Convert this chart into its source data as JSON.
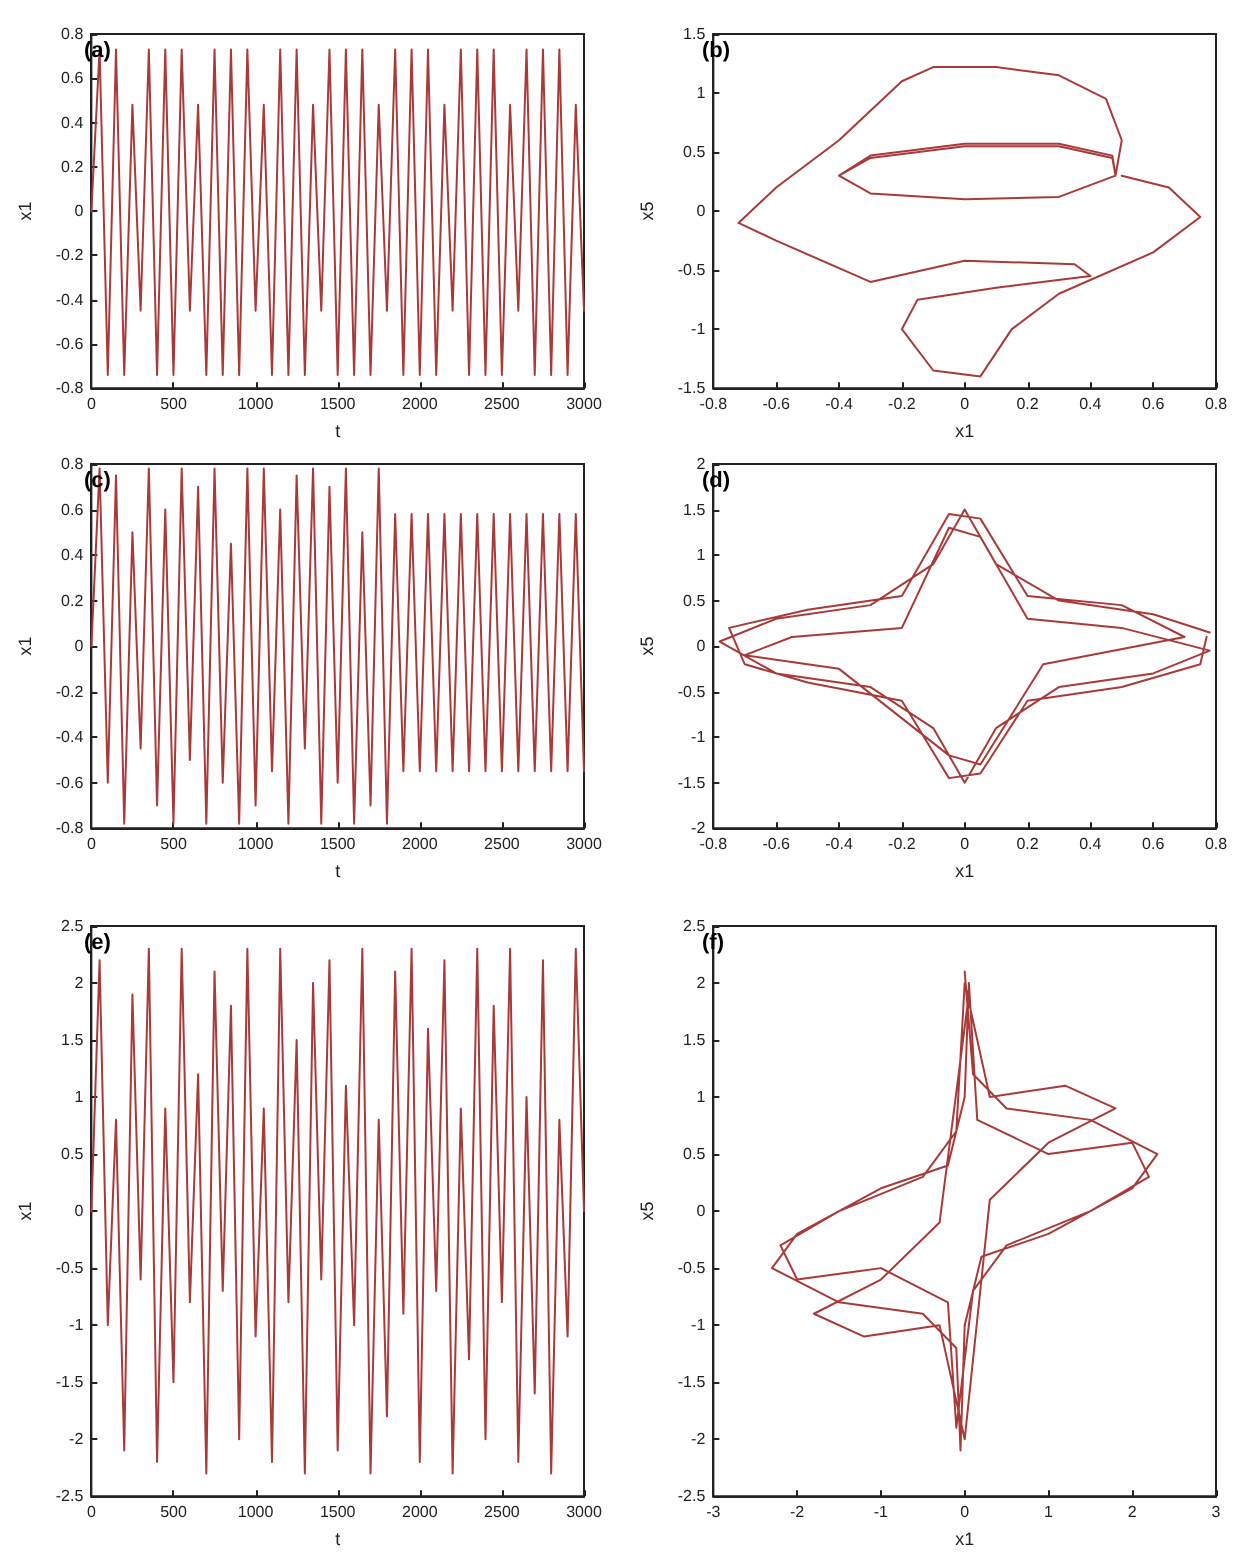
{
  "chart_data": [
    {
      "type": "line",
      "title": "(a)",
      "xlabel": "t",
      "ylabel": "x1",
      "xlim": [
        0,
        3000
      ],
      "xticks": [
        0,
        500,
        1000,
        1500,
        2000,
        2500,
        3000
      ],
      "ylim": [
        -0.8,
        0.8
      ],
      "yticks": [
        -0.8,
        -0.6,
        -0.4,
        -0.2,
        0,
        0.2,
        0.4,
        0.6,
        0.8
      ],
      "series": [
        {
          "color": "#a83a3a",
          "x": [
            0,
            50,
            100,
            150,
            200,
            250,
            300,
            350,
            400,
            450,
            500,
            550,
            600,
            650,
            700,
            750,
            800,
            850,
            900,
            950,
            1000,
            1050,
            1100,
            1150,
            1200,
            1250,
            1300,
            1350,
            1400,
            1450,
            1500,
            1550,
            1600,
            1650,
            1700,
            1750,
            1800,
            1850,
            1900,
            1950,
            2000,
            2050,
            2100,
            2150,
            2200,
            2250,
            2300,
            2350,
            2400,
            2450,
            2500,
            2550,
            2600,
            2650,
            2700,
            2750,
            2800,
            2850,
            2900,
            2950,
            3000
          ],
          "values": [
            0,
            0.73,
            -0.74,
            0.73,
            -0.74,
            0.48,
            -0.45,
            0.73,
            -0.74,
            0.73,
            -0.74,
            0.73,
            -0.45,
            0.48,
            -0.74,
            0.73,
            -0.74,
            0.73,
            -0.74,
            0.73,
            -0.45,
            0.48,
            -0.74,
            0.73,
            -0.74,
            0.73,
            -0.74,
            0.48,
            -0.45,
            0.73,
            -0.74,
            0.73,
            -0.74,
            0.73,
            -0.74,
            0.48,
            -0.45,
            0.73,
            -0.74,
            0.73,
            -0.74,
            0.73,
            -0.74,
            0.48,
            -0.45,
            0.73,
            -0.74,
            0.73,
            -0.74,
            0.73,
            -0.74,
            0.48,
            -0.45,
            0.73,
            -0.74,
            0.73,
            -0.74,
            0.73,
            -0.74,
            0.48,
            -0.45
          ]
        }
      ]
    },
    {
      "type": "line",
      "title": "(b)",
      "xlabel": "x1",
      "ylabel": "x5",
      "xlim": [
        -0.8,
        0.8
      ],
      "xticks": [
        -0.8,
        -0.6,
        -0.4,
        -0.2,
        0,
        0.2,
        0.4,
        0.6,
        0.8
      ],
      "ylim": [
        -1.5,
        1.5
      ],
      "yticks": [
        -1.5,
        -1,
        -0.5,
        0,
        0.5,
        1,
        1.5
      ],
      "series": [
        {
          "color": "#a83a3a",
          "x": [
            -0.4,
            -0.3,
            0,
            0.3,
            0.47,
            0.48,
            0.3,
            0,
            -0.3,
            -0.4,
            -0.3,
            0,
            0.3,
            0.47,
            0.48,
            0.5,
            0.45,
            0.3,
            0.1,
            -0.1,
            -0.2,
            -0.4,
            -0.6,
            -0.72,
            -0.6,
            -0.3,
            0,
            0.35,
            0.4,
            0.1,
            -0.15,
            -0.2,
            -0.1,
            0.05,
            0.15,
            0.3,
            0.6,
            0.75,
            0.65,
            0.5
          ],
          "values": [
            0.3,
            0.45,
            0.55,
            0.55,
            0.45,
            0.3,
            0.12,
            0.1,
            0.15,
            0.3,
            0.47,
            0.57,
            0.57,
            0.47,
            0.3,
            0.6,
            0.95,
            1.15,
            1.22,
            1.22,
            1.1,
            0.6,
            0.2,
            -0.1,
            -0.25,
            -0.6,
            -0.42,
            -0.45,
            -0.55,
            -0.65,
            -0.75,
            -1,
            -1.35,
            -1.4,
            -1,
            -0.7,
            -0.35,
            -0.05,
            0.2,
            0.3
          ]
        }
      ]
    },
    {
      "type": "line",
      "title": "(c)",
      "xlabel": "t",
      "ylabel": "x1",
      "xlim": [
        0,
        3000
      ],
      "xticks": [
        0,
        500,
        1000,
        1500,
        2000,
        2500,
        3000
      ],
      "ylim": [
        -0.8,
        0.8
      ],
      "yticks": [
        -0.8,
        -0.6,
        -0.4,
        -0.2,
        0,
        0.2,
        0.4,
        0.6,
        0.8
      ],
      "series": [
        {
          "color": "#a83a3a",
          "x": [
            0,
            50,
            100,
            150,
            200,
            250,
            300,
            350,
            400,
            450,
            500,
            550,
            600,
            650,
            700,
            750,
            800,
            850,
            900,
            950,
            1000,
            1050,
            1100,
            1150,
            1200,
            1250,
            1300,
            1350,
            1400,
            1450,
            1500,
            1550,
            1600,
            1650,
            1700,
            1750,
            1800,
            1850,
            1900,
            1950,
            2000,
            2050,
            2100,
            2150,
            2200,
            2250,
            2300,
            2350,
            2400,
            2450,
            2500,
            2550,
            2600,
            2650,
            2700,
            2750,
            2800,
            2850,
            2900,
            2950,
            3000
          ],
          "values": [
            0,
            0.78,
            -0.6,
            0.75,
            -0.78,
            0.5,
            -0.45,
            0.78,
            -0.7,
            0.6,
            -0.78,
            0.78,
            -0.5,
            0.7,
            -0.78,
            0.78,
            -0.6,
            0.45,
            -0.78,
            0.78,
            -0.7,
            0.78,
            -0.55,
            0.6,
            -0.78,
            0.75,
            -0.45,
            0.78,
            -0.78,
            0.7,
            -0.6,
            0.78,
            -0.78,
            0.5,
            -0.7,
            0.78,
            -0.78,
            0.58,
            -0.55,
            0.58,
            -0.55,
            0.58,
            -0.55,
            0.58,
            -0.55,
            0.58,
            -0.55,
            0.58,
            -0.55,
            0.58,
            -0.55,
            0.58,
            -0.55,
            0.58,
            -0.55,
            0.58,
            -0.55,
            0.58,
            -0.55,
            0.58,
            -0.55
          ]
        }
      ]
    },
    {
      "type": "line",
      "title": "(d)",
      "xlabel": "x1",
      "ylabel": "x5",
      "xlim": [
        -0.8,
        0.8
      ],
      "xticks": [
        -0.8,
        -0.6,
        -0.4,
        -0.2,
        0,
        0.2,
        0.4,
        0.6,
        0.8
      ],
      "ylim": [
        -2,
        2
      ],
      "yticks": [
        -2,
        -1.5,
        -1,
        -0.5,
        0,
        0.5,
        1,
        1.5,
        2
      ],
      "series": [
        {
          "color": "#a83a3a",
          "x": [
            0.78,
            0.6,
            0.3,
            0.1,
            0,
            -0.1,
            -0.3,
            -0.6,
            -0.78,
            -0.6,
            -0.3,
            -0.1,
            0,
            0.1,
            0.3,
            0.6,
            0.78,
            0.5,
            0.2,
            0.05,
            -0.05,
            -0.2,
            -0.55,
            -0.7,
            -0.4,
            -0.05,
            0.05,
            0.25,
            0.7,
            0.5,
            0.2,
            0.05,
            -0.05,
            -0.2,
            -0.5,
            -0.75,
            -0.7,
            -0.5,
            -0.2,
            -0.05,
            0.05,
            0.2,
            0.5,
            0.75,
            0.77
          ],
          "values": [
            0.15,
            0.35,
            0.5,
            0.9,
            1.5,
            0.9,
            0.45,
            0.3,
            0.05,
            -0.3,
            -0.45,
            -0.9,
            -1.5,
            -0.9,
            -0.45,
            -0.3,
            -0.05,
            0.2,
            0.3,
            1.2,
            1.3,
            0.2,
            0.1,
            -0.1,
            -0.25,
            -1.2,
            -1.3,
            -0.2,
            0.1,
            0.45,
            0.55,
            1.4,
            1.45,
            0.55,
            0.4,
            0.2,
            -0.2,
            -0.4,
            -0.6,
            -1.45,
            -1.4,
            -0.6,
            -0.45,
            -0.2,
            0.1
          ]
        }
      ]
    },
    {
      "type": "line",
      "title": "(e)",
      "xlabel": "t",
      "ylabel": "x1",
      "xlim": [
        0,
        3000
      ],
      "xticks": [
        0,
        500,
        1000,
        1500,
        2000,
        2500,
        3000
      ],
      "ylim": [
        -2.5,
        2.5
      ],
      "yticks": [
        -2.5,
        -2,
        -1.5,
        -1,
        -0.5,
        0,
        0.5,
        1,
        1.5,
        2,
        2.5
      ],
      "series": [
        {
          "color": "#a83a3a",
          "x": [
            0,
            50,
            100,
            150,
            200,
            250,
            300,
            350,
            400,
            450,
            500,
            550,
            600,
            650,
            700,
            750,
            800,
            850,
            900,
            950,
            1000,
            1050,
            1100,
            1150,
            1200,
            1250,
            1300,
            1350,
            1400,
            1450,
            1500,
            1550,
            1600,
            1650,
            1700,
            1750,
            1800,
            1850,
            1900,
            1950,
            2000,
            2050,
            2100,
            2150,
            2200,
            2250,
            2300,
            2350,
            2400,
            2450,
            2500,
            2550,
            2600,
            2650,
            2700,
            2750,
            2800,
            2850,
            2900,
            2950,
            3000
          ],
          "values": [
            0,
            2.2,
            -1,
            0.8,
            -2.1,
            1.9,
            -0.6,
            2.3,
            -2.2,
            0.9,
            -1.5,
            2.3,
            -0.8,
            1.2,
            -2.3,
            2.1,
            -0.7,
            1.8,
            -2,
            2.3,
            -1.1,
            0.9,
            -2.2,
            2.3,
            -0.8,
            1.5,
            -2.3,
            2,
            -0.6,
            2.2,
            -2.1,
            1.1,
            -1,
            2.3,
            -2.3,
            0.8,
            -1.8,
            2.1,
            -0.9,
            2.3,
            -2.2,
            1.6,
            -0.7,
            2.2,
            -2.3,
            0.9,
            -1.3,
            2.3,
            -2,
            1.8,
            -0.8,
            2.3,
            -2.2,
            1,
            -1.6,
            2.2,
            -2.3,
            0.8,
            -1.1,
            2.3,
            0
          ]
        }
      ]
    },
    {
      "type": "line",
      "title": "(f)",
      "xlabel": "x1",
      "ylabel": "x5",
      "xlim": [
        -3,
        3
      ],
      "xticks": [
        -3,
        -2,
        -1,
        0,
        1,
        2,
        3
      ],
      "ylim": [
        -2.5,
        2.5
      ],
      "yticks": [
        -2.5,
        -2,
        -1.5,
        -1,
        -0.5,
        0,
        0.5,
        1,
        1.5,
        2,
        2.5
      ],
      "series": [
        {
          "color": "#a83a3a",
          "x": [
            0,
            0.1,
            0.5,
            1.5,
            2.3,
            2,
            1,
            0.2,
            0,
            -0.05,
            -0.1,
            -0.5,
            -1.5,
            -2.3,
            -2,
            -1,
            -0.2,
            0,
            0.05,
            0.15,
            1,
            2,
            2.2,
            1.5,
            0.5,
            0.1,
            -0.1,
            -0.2,
            -1,
            -2,
            -2.2,
            -1.5,
            -0.5,
            -0.1,
            0,
            0.3,
            1.2,
            1.8,
            1,
            0.3,
            0,
            -0.3,
            -1.2,
            -1.8,
            -1,
            -0.3,
            0.05
          ],
          "values": [
            2.1,
            1.2,
            0.9,
            0.8,
            0.5,
            0.2,
            -0.2,
            -0.4,
            -1,
            -2.1,
            -1.2,
            -0.9,
            -0.8,
            -0.5,
            -0.2,
            0.2,
            0.4,
            1,
            2,
            0.8,
            0.5,
            0.6,
            0.3,
            0,
            -0.3,
            -0.7,
            -1.9,
            -0.8,
            -0.5,
            -0.6,
            -0.3,
            0,
            0.3,
            0.7,
            2,
            1,
            1.1,
            0.9,
            0.6,
            0.1,
            -2,
            -1,
            -1.1,
            -0.9,
            -0.6,
            -0.1,
            1.9
          ]
        }
      ]
    }
  ]
}
